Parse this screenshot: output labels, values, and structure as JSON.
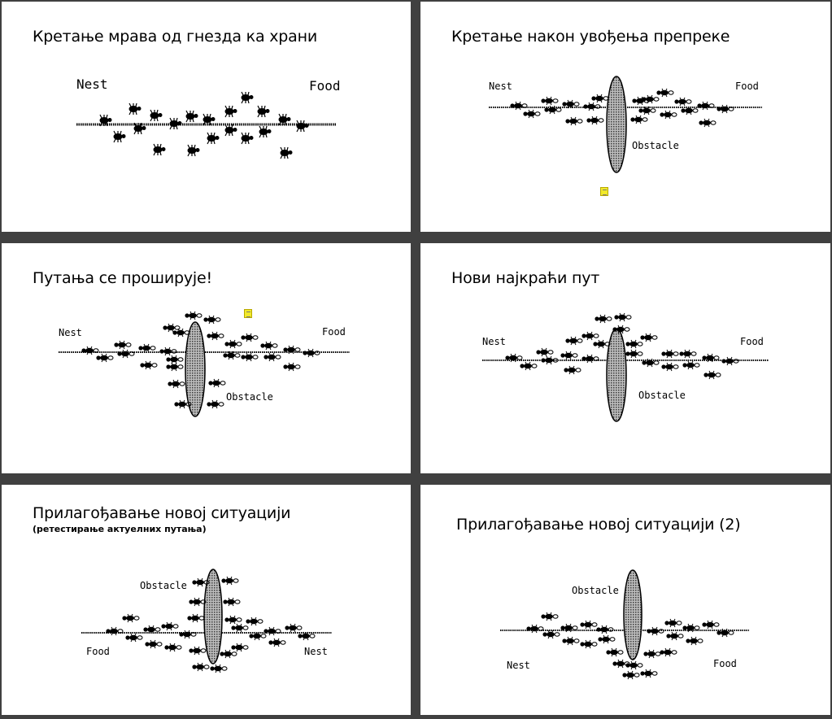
{
  "slides": [
    {
      "title": "Кретање мрава од гнезда ка храни",
      "labels": {
        "nest": "Nest",
        "food": "Food"
      }
    },
    {
      "title": "Кретање након увођења препреке",
      "labels": {
        "nest": "Nest",
        "food": "Food",
        "obstacle": "Obstacle"
      }
    },
    {
      "title": "Путања се проширује!",
      "labels": {
        "nest": "Nest",
        "food": "Food",
        "obstacle": "Obstacle"
      }
    },
    {
      "title": "Нови најкраћи пут",
      "labels": {
        "nest": "Nest",
        "food": "Food",
        "obstacle": "Obstacle"
      }
    },
    {
      "title": "Прилагођавање новој ситуацији",
      "subtitle": "(ретестирање актуелних путања)",
      "labels": {
        "obstacle": "Obstacle",
        "food": "Food",
        "nest": "Nest"
      }
    },
    {
      "title": "Прилагођавање новој ситуацији (2)",
      "labels": {
        "obstacle": "Obstacle",
        "nest": "Nest",
        "food": "Food"
      }
    }
  ],
  "icons": {
    "note": "sticky-note-icon",
    "ant": "ant-icon"
  },
  "colors": {
    "background": "#404040",
    "slide": "#ffffff",
    "obstacle": "#8a8a8a",
    "note": "#f2ea2a"
  }
}
